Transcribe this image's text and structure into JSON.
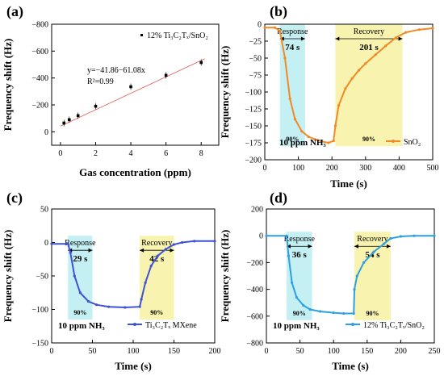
{
  "chart_data": [
    {
      "panel": "(a)",
      "type": "scatter",
      "xlabel": "Gas concentration (ppm)",
      "ylabel": "Frequency shift (Hz)",
      "xlim": [
        -0.5,
        9
      ],
      "ylim": [
        100,
        -800
      ],
      "xticks": [
        0,
        2,
        4,
        6,
        8
      ],
      "xtick_labels": [
        "0",
        "2",
        "4",
        "6",
        "8"
      ],
      "yticks": [
        0,
        -200,
        -400,
        -600,
        -800
      ],
      "ytick_labels": [
        "0",
        "−200",
        "−400",
        "−600",
        "−800"
      ],
      "series": [
        {
          "name": "12% Ti3C2Tx/SnO2",
          "x": [
            0.2,
            0.5,
            1,
            2,
            4,
            6,
            8
          ],
          "y": [
            -65,
            -90,
            -120,
            -190,
            -335,
            -420,
            -515
          ],
          "color": "#000000"
        }
      ],
      "fit": {
        "x": [
          0,
          8.2
        ],
        "y": [
          -41.86,
          -542.7
        ],
        "color": "#e05a5a"
      },
      "equation_label": "y=−41.86−61.08x",
      "r2_label": "R²=0.99",
      "legend_label": "12% Ti₃C₂Tₓ/SnO₂",
      "legend_position": "top-right"
    },
    {
      "panel": "(b)",
      "type": "line",
      "xlabel": "Time (s)",
      "ylabel": "Frequency shift (Hz)",
      "xlim": [
        0,
        500
      ],
      "ylim": [
        -200,
        0
      ],
      "xticks": [
        0,
        100,
        200,
        300,
        400,
        500
      ],
      "xtick_labels": [
        "0",
        "100",
        "200",
        "300",
        "400",
        "500"
      ],
      "yticks": [
        0,
        -25,
        -50,
        -75,
        -100,
        -125,
        -150,
        -175,
        -200
      ],
      "ytick_labels": [
        "0",
        "−25",
        "−50",
        "−75",
        "−100",
        "−125",
        "−150",
        "−175",
        "−200"
      ],
      "series": [
        {
          "name": "SnO2",
          "x": [
            0,
            30,
            45,
            60,
            75,
            90,
            110,
            130,
            150,
            170,
            190,
            205,
            210,
            220,
            240,
            260,
            280,
            300,
            330,
            360,
            390,
            420,
            460,
            500
          ],
          "y": [
            -5,
            -5,
            -10,
            -50,
            -110,
            -140,
            -158,
            -166,
            -170,
            -173,
            -175,
            -172,
            -150,
            -120,
            -95,
            -80,
            -68,
            -58,
            -45,
            -32,
            -20,
            -12,
            -8,
            -6
          ],
          "color": "#f08a24"
        }
      ],
      "response_box": {
        "x": [
          45,
          120
        ],
        "y": [
          -180,
          0
        ],
        "label": "Response",
        "time_label": "74 s",
        "pct_label": "90%"
      },
      "recovery_box": {
        "x": [
          210,
          410
        ],
        "y": [
          -180,
          0
        ],
        "label": "Recovery",
        "time_label": "201 s",
        "pct_label": "90%"
      },
      "condition_label": "10 ppm NH₃",
      "legend_label": "SnO₂",
      "legend_position": "bottom-right"
    },
    {
      "panel": "(c)",
      "type": "line",
      "xlabel": "Time (s)",
      "ylabel": "Frequency shift (Hz)",
      "xlim": [
        0,
        200
      ],
      "ylim": [
        -150,
        50
      ],
      "xticks": [
        0,
        50,
        100,
        150,
        200
      ],
      "xtick_labels": [
        "0",
        "50",
        "100",
        "150",
        "200"
      ],
      "yticks": [
        50,
        0,
        -50,
        -100,
        -150
      ],
      "ytick_labels": [
        "50",
        "0",
        "−50",
        "−100",
        "−150"
      ],
      "series": [
        {
          "name": "Ti3C2Tx MXene",
          "x": [
            0,
            20,
            23,
            28,
            35,
            45,
            55,
            70,
            90,
            108,
            110,
            115,
            122,
            130,
            140,
            150,
            160,
            175,
            200
          ],
          "y": [
            -2,
            -2,
            -15,
            -50,
            -75,
            -88,
            -93,
            -96,
            -97,
            -96,
            -85,
            -60,
            -35,
            -20,
            -10,
            -3,
            0,
            2,
            2
          ],
          "color": "#3f51d6"
        }
      ],
      "response_box": {
        "x": [
          20,
          50
        ],
        "y": [
          -115,
          10
        ],
        "label": "Response",
        "time_label": "29 s",
        "pct_label": "90%"
      },
      "recovery_box": {
        "x": [
          108,
          150
        ],
        "y": [
          -115,
          10
        ],
        "label": "Recovery",
        "time_label": "42 s",
        "pct_label": "90%"
      },
      "condition_label": "10 ppm NH₃",
      "legend_label": "Ti₃C₂Tₓ MXene",
      "legend_position": "bottom-right"
    },
    {
      "panel": "(d)",
      "type": "line",
      "xlabel": "Time (s)",
      "ylabel": "Frequency shift (Hz)",
      "xlim": [
        0,
        250
      ],
      "ylim": [
        -800,
        200
      ],
      "xticks": [
        0,
        50,
        100,
        150,
        200,
        250
      ],
      "xtick_labels": [
        "0",
        "50",
        "100",
        "150",
        "200",
        "250"
      ],
      "yticks": [
        200,
        0,
        -200,
        -400,
        -600,
        -800
      ],
      "ytick_labels": [
        "200",
        "0",
        "−200",
        "−400",
        "−600",
        "−800"
      ],
      "series": [
        {
          "name": "12% Ti3C2Tx/SnO2",
          "x": [
            0,
            30,
            33,
            38,
            45,
            55,
            65,
            80,
            100,
            115,
            130,
            131,
            135,
            145,
            160,
            175,
            185,
            200,
            220,
            250
          ],
          "y": [
            0,
            0,
            -150,
            -350,
            -460,
            -520,
            -550,
            -565,
            -575,
            -580,
            -580,
            -400,
            -300,
            -200,
            -120,
            -60,
            -20,
            -5,
            0,
            0
          ],
          "color": "#2ea0e0"
        }
      ],
      "response_box": {
        "x": [
          30,
          68
        ],
        "y": [
          -630,
          30
        ],
        "label": "Response",
        "time_label": "36 s",
        "pct_label": "90%"
      },
      "recovery_box": {
        "x": [
          131,
          185
        ],
        "y": [
          -630,
          30
        ],
        "label": "Recovery",
        "time_label": "54 s",
        "pct_label": "90%"
      },
      "condition_label": "10 ppm NH₃",
      "legend_label": "12% Ti₃C₂Tₓ/SnO₂",
      "legend_position": "bottom-right"
    }
  ]
}
